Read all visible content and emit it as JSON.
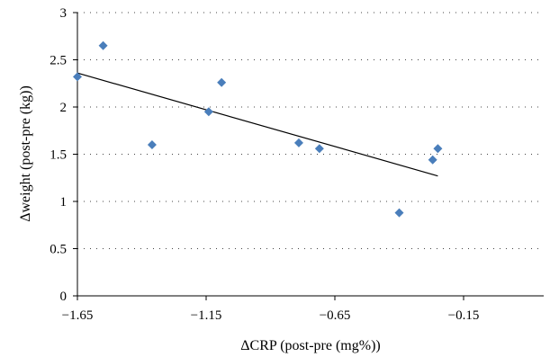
{
  "chart_data": {
    "type": "scatter",
    "title": "",
    "xlabel": "ΔCRP (post-pre (mg%))",
    "ylabel": "Δweight (post-pre (kg))",
    "xlim": [
      -1.65,
      0.2
    ],
    "ylim": [
      0,
      3
    ],
    "x_ticks": [
      -1.65,
      -1.15,
      -0.65,
      -0.15
    ],
    "x_tick_labels": [
      "−1.65",
      "−1.15",
      "−0.65",
      "−0.15"
    ],
    "y_ticks": [
      0,
      0.5,
      1,
      1.5,
      2,
      2.5,
      3
    ],
    "y_tick_labels": [
      "0",
      "0.5",
      "1",
      "1.5",
      "2",
      "2.5",
      "3"
    ],
    "grid": {
      "horizontal": true,
      "vertical": false,
      "style": "dotted"
    },
    "series": [
      {
        "marker": "diamond",
        "color": "#4a7ebb",
        "points": [
          {
            "x": -1.65,
            "y": 2.32
          },
          {
            "x": -1.55,
            "y": 2.65
          },
          {
            "x": -1.36,
            "y": 1.6
          },
          {
            "x": -1.14,
            "y": 1.95
          },
          {
            "x": -1.09,
            "y": 2.26
          },
          {
            "x": -0.79,
            "y": 1.62
          },
          {
            "x": -0.71,
            "y": 1.56
          },
          {
            "x": -0.4,
            "y": 0.88
          },
          {
            "x": -0.27,
            "y": 1.44
          },
          {
            "x": -0.25,
            "y": 1.56
          }
        ]
      }
    ],
    "trendline": {
      "type": "linear",
      "color": "#000000",
      "x_start": -1.65,
      "y_start": 2.36,
      "x_end": -0.25,
      "y_end": 1.27
    }
  }
}
